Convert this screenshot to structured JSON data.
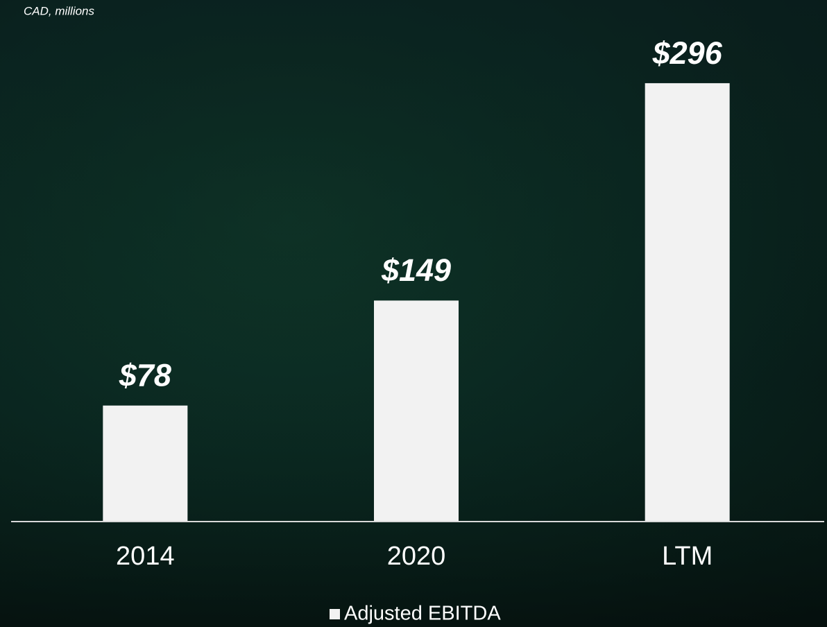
{
  "chart_data": {
    "type": "bar",
    "subtitle": "CAD, millions",
    "categories": [
      "2014",
      "2020",
      "LTM"
    ],
    "series": [
      {
        "name": "Adjusted EBITDA",
        "color": "#f2f2f2",
        "values": [
          78,
          149,
          296
        ],
        "value_labels": [
          "$78",
          "$149",
          "$296"
        ]
      }
    ]
  }
}
